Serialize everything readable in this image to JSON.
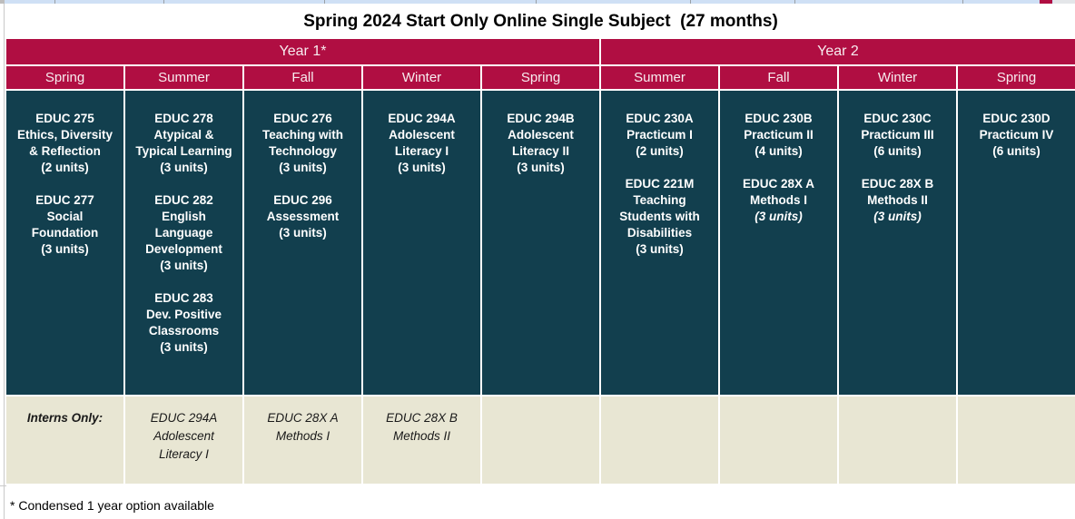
{
  "sheet": {
    "title": "Spring 2024 Start Only Online Single Subject  (27 months)",
    "footnote": "* Condensed 1 year option available"
  },
  "colors": {
    "crimson_header": "#B00E42",
    "teal_cell": "#123F4E",
    "beige_cell": "#E8E6D3",
    "header_text": "#F7ECEF",
    "cell_text": "#FFFFFF"
  },
  "year_headers": [
    {
      "label": "Year 1*",
      "span": 5
    },
    {
      "label": "Year 2",
      "span": 4
    }
  ],
  "season_headers": [
    "Spring",
    "Summer",
    "Fall",
    "Winter",
    "Spring",
    "Summer",
    "Fall",
    "Winter",
    "Spring"
  ],
  "schedule_columns": [
    {
      "season": "Spring",
      "year": "Year 1",
      "courses": [
        {
          "lines": [
            "EDUC 275",
            "Ethics, Diversity",
            "& Reflection",
            "(2 units)"
          ],
          "units_italic": false
        },
        {
          "lines": [
            "EDUC 277",
            "Social",
            "Foundation",
            "(3 units)"
          ],
          "units_italic": false
        }
      ]
    },
    {
      "season": "Summer",
      "year": "Year 1",
      "courses": [
        {
          "lines": [
            "EDUC 278",
            "Atypical &",
            "Typical Learning",
            "(3 units)"
          ],
          "units_italic": false
        },
        {
          "lines": [
            "EDUC 282",
            "English",
            "Language",
            "Development",
            "(3 units)"
          ],
          "units_italic": false
        },
        {
          "lines": [
            "EDUC 283",
            "Dev. Positive",
            "Classrooms",
            "(3 units)"
          ],
          "units_italic": false
        }
      ]
    },
    {
      "season": "Fall",
      "year": "Year 1",
      "courses": [
        {
          "lines": [
            "EDUC 276",
            "Teaching with",
            "Technology",
            "(3 units)"
          ],
          "units_italic": false
        },
        {
          "lines": [
            "EDUC 296",
            "Assessment",
            "(3 units)"
          ],
          "units_italic": false
        }
      ]
    },
    {
      "season": "Winter",
      "year": "Year 1",
      "courses": [
        {
          "lines": [
            "EDUC 294A",
            "Adolescent",
            "Literacy I",
            "(3 units)"
          ],
          "units_italic": false
        }
      ]
    },
    {
      "season": "Spring",
      "year": "Year 1",
      "courses": [
        {
          "lines": [
            "EDUC 294B",
            "Adolescent",
            "Literacy II",
            "(3 units)"
          ],
          "units_italic": false
        }
      ]
    },
    {
      "season": "Summer",
      "year": "Year 2",
      "courses": [
        {
          "lines": [
            "EDUC 230A",
            "Practicum I",
            "(2 units)"
          ],
          "units_italic": false
        },
        {
          "lines": [
            "EDUC 221M",
            "Teaching",
            "Students with",
            "Disabilities",
            "(3 units)"
          ],
          "units_italic": false
        }
      ]
    },
    {
      "season": "Fall",
      "year": "Year 2",
      "courses": [
        {
          "lines": [
            "EDUC 230B",
            "Practicum II",
            "(4 units)"
          ],
          "units_italic": false
        },
        {
          "lines": [
            "EDUC 28X A",
            "Methods I",
            "(3 units)"
          ],
          "units_italic": true
        }
      ]
    },
    {
      "season": "Winter",
      "year": "Year 2",
      "courses": [
        {
          "lines": [
            "EDUC 230C",
            "Practicum III",
            "(6 units)"
          ],
          "units_italic": false
        },
        {
          "lines": [
            "EDUC 28X B",
            "Methods II",
            "(3 units)"
          ],
          "units_italic": true
        }
      ]
    },
    {
      "season": "Spring",
      "year": "Year 2",
      "courses": [
        {
          "lines": [
            "EDUC 230D",
            "Practicum IV",
            "(6 units)"
          ],
          "units_italic": false
        }
      ]
    }
  ],
  "interns_row": {
    "label": "Interns Only:",
    "cells": [
      {
        "lines": [
          "EDUC 294A",
          "Adolescent",
          "Literacy I"
        ]
      },
      {
        "lines": [
          "EDUC 28X A",
          "Methods I"
        ]
      },
      {
        "lines": [
          "EDUC 28X B",
          "Methods II"
        ]
      },
      {
        "lines": []
      },
      {
        "lines": []
      },
      {
        "lines": []
      },
      {
        "lines": []
      },
      {
        "lines": []
      }
    ]
  }
}
